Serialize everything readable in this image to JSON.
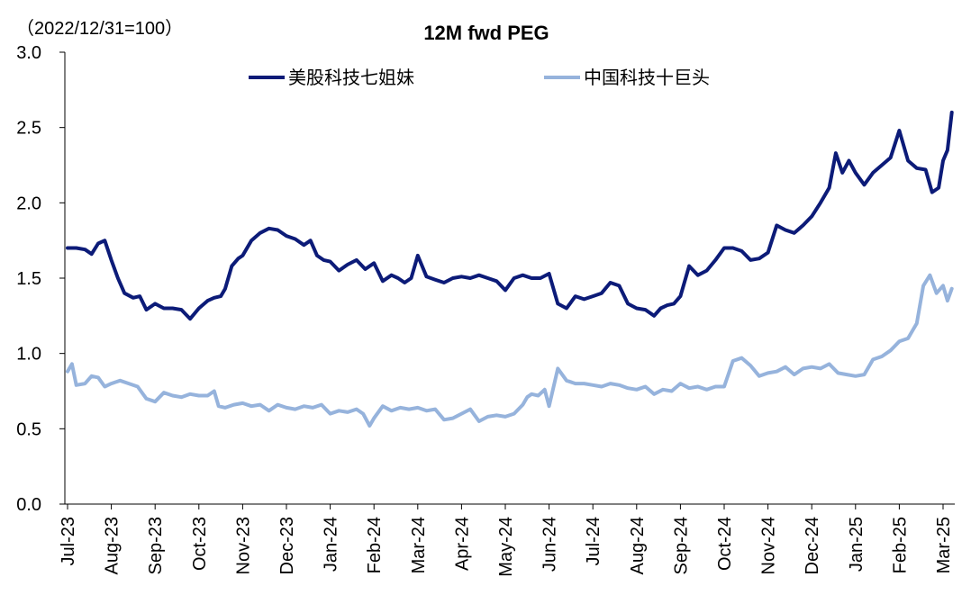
{
  "chart_data": {
    "type": "line",
    "title": "12M fwd PEG",
    "note": "（2022/12/31=100）",
    "xlabel": "",
    "ylabel": "",
    "ylim": [
      0.0,
      3.0
    ],
    "y_ticks": [
      "0.0",
      "0.5",
      "1.0",
      "1.5",
      "2.0",
      "2.5",
      "3.0"
    ],
    "x_ticks": [
      "Jul-23",
      "Aug-23",
      "Sep-23",
      "Oct-23",
      "Nov-23",
      "Dec-23",
      "Jan-24",
      "Feb-24",
      "Mar-24",
      "Apr-24",
      "May-24",
      "Jun-24",
      "Jul-24",
      "Aug-24",
      "Sep-24",
      "Oct-24",
      "Nov-24",
      "Dec-24",
      "Jan-25",
      "Feb-25",
      "Mar-25"
    ],
    "legend_position": "top",
    "series": [
      {
        "name": "美股科技七姐妹",
        "color": "#0c1b78",
        "x": [
          0,
          0.2,
          0.4,
          0.55,
          0.7,
          0.85,
          1.0,
          1.15,
          1.3,
          1.5,
          1.65,
          1.8,
          2.0,
          2.2,
          2.4,
          2.6,
          2.8,
          3.0,
          3.2,
          3.35,
          3.5,
          3.6,
          3.75,
          3.9,
          4.0,
          4.2,
          4.4,
          4.6,
          4.8,
          5.0,
          5.2,
          5.4,
          5.55,
          5.7,
          5.85,
          6.0,
          6.2,
          6.4,
          6.6,
          6.8,
          7.0,
          7.2,
          7.4,
          7.55,
          7.7,
          7.85,
          8.0,
          8.2,
          8.4,
          8.6,
          8.8,
          9.0,
          9.2,
          9.4,
          9.6,
          9.8,
          10.0,
          10.2,
          10.4,
          10.6,
          10.8,
          11.0,
          11.2,
          11.4,
          11.6,
          11.8,
          12.0,
          12.2,
          12.4,
          12.6,
          12.8,
          13.0,
          13.2,
          13.4,
          13.55,
          13.7,
          13.85,
          14.0,
          14.2,
          14.4,
          14.6,
          14.8,
          15.0,
          15.2,
          15.4,
          15.6,
          15.8,
          16.0,
          16.2,
          16.4,
          16.6,
          16.8,
          17.0,
          17.2,
          17.4,
          17.55,
          17.7,
          17.85,
          18.0,
          18.2,
          18.4,
          18.6,
          18.8,
          19.0,
          19.2,
          19.4,
          19.6,
          19.75,
          19.9,
          20.0,
          20.1,
          20.2
        ],
        "values": [
          1.7,
          1.7,
          1.69,
          1.66,
          1.73,
          1.75,
          1.62,
          1.5,
          1.4,
          1.37,
          1.38,
          1.29,
          1.33,
          1.3,
          1.3,
          1.29,
          1.23,
          1.3,
          1.35,
          1.37,
          1.38,
          1.43,
          1.58,
          1.63,
          1.65,
          1.75,
          1.8,
          1.83,
          1.82,
          1.78,
          1.76,
          1.72,
          1.75,
          1.65,
          1.62,
          1.61,
          1.55,
          1.59,
          1.62,
          1.56,
          1.6,
          1.48,
          1.52,
          1.5,
          1.47,
          1.5,
          1.65,
          1.51,
          1.49,
          1.47,
          1.5,
          1.51,
          1.5,
          1.52,
          1.5,
          1.48,
          1.42,
          1.5,
          1.52,
          1.5,
          1.5,
          1.53,
          1.33,
          1.3,
          1.38,
          1.36,
          1.38,
          1.4,
          1.47,
          1.45,
          1.33,
          1.3,
          1.29,
          1.25,
          1.3,
          1.32,
          1.33,
          1.38,
          1.58,
          1.52,
          1.55,
          1.62,
          1.7,
          1.7,
          1.68,
          1.62,
          1.63,
          1.67,
          1.85,
          1.82,
          1.8,
          1.85,
          1.91,
          2.0,
          2.1,
          2.33,
          2.2,
          2.28,
          2.2,
          2.12,
          2.2,
          2.25,
          2.3,
          2.48,
          2.28,
          2.23,
          2.22,
          2.07,
          2.1,
          2.28,
          2.35,
          2.6
        ],
        "note": "x values in month units: 0 = Jul-23, 20 = Mar-25"
      },
      {
        "name": "中国科技十巨头",
        "color": "#96b3dc",
        "x": [
          0,
          0.1,
          0.2,
          0.4,
          0.55,
          0.7,
          0.85,
          1.0,
          1.2,
          1.4,
          1.6,
          1.8,
          2.0,
          2.2,
          2.4,
          2.6,
          2.8,
          3.0,
          3.2,
          3.35,
          3.45,
          3.6,
          3.8,
          4.0,
          4.2,
          4.4,
          4.6,
          4.8,
          5.0,
          5.2,
          5.4,
          5.6,
          5.8,
          6.0,
          6.2,
          6.4,
          6.6,
          6.75,
          6.9,
          7.0,
          7.2,
          7.4,
          7.6,
          7.8,
          8.0,
          8.2,
          8.4,
          8.6,
          8.8,
          9.0,
          9.2,
          9.4,
          9.6,
          9.8,
          10.0,
          10.2,
          10.4,
          10.5,
          10.6,
          10.75,
          10.9,
          11.0,
          11.2,
          11.4,
          11.6,
          11.8,
          12.0,
          12.2,
          12.4,
          12.6,
          12.8,
          13.0,
          13.2,
          13.4,
          13.6,
          13.8,
          14.0,
          14.2,
          14.4,
          14.6,
          14.8,
          15.0,
          15.2,
          15.4,
          15.6,
          15.8,
          16.0,
          16.2,
          16.4,
          16.6,
          16.8,
          17.0,
          17.2,
          17.4,
          17.6,
          17.8,
          18.0,
          18.2,
          18.4,
          18.6,
          18.8,
          19.0,
          19.2,
          19.4,
          19.55,
          19.7,
          19.85,
          20.0,
          20.1,
          20.2
        ],
        "values": [
          0.88,
          0.93,
          0.79,
          0.8,
          0.85,
          0.84,
          0.78,
          0.8,
          0.82,
          0.8,
          0.78,
          0.7,
          0.68,
          0.74,
          0.72,
          0.71,
          0.73,
          0.72,
          0.72,
          0.75,
          0.65,
          0.64,
          0.66,
          0.67,
          0.65,
          0.66,
          0.62,
          0.66,
          0.64,
          0.63,
          0.65,
          0.64,
          0.66,
          0.6,
          0.62,
          0.61,
          0.63,
          0.6,
          0.52,
          0.57,
          0.65,
          0.62,
          0.64,
          0.63,
          0.64,
          0.62,
          0.63,
          0.56,
          0.57,
          0.6,
          0.63,
          0.55,
          0.58,
          0.59,
          0.58,
          0.6,
          0.66,
          0.71,
          0.73,
          0.72,
          0.76,
          0.65,
          0.9,
          0.82,
          0.8,
          0.8,
          0.79,
          0.78,
          0.8,
          0.79,
          0.77,
          0.76,
          0.78,
          0.73,
          0.76,
          0.75,
          0.8,
          0.77,
          0.78,
          0.76,
          0.78,
          0.78,
          0.95,
          0.97,
          0.92,
          0.85,
          0.87,
          0.88,
          0.91,
          0.86,
          0.9,
          0.91,
          0.9,
          0.93,
          0.87,
          0.86,
          0.85,
          0.86,
          0.96,
          0.98,
          1.02,
          1.08,
          1.1,
          1.2,
          1.45,
          1.52,
          1.4,
          1.45,
          1.35,
          1.43
        ],
        "note": "x values in month units: 0 = Jul-23, 20 = Mar-25"
      }
    ]
  }
}
